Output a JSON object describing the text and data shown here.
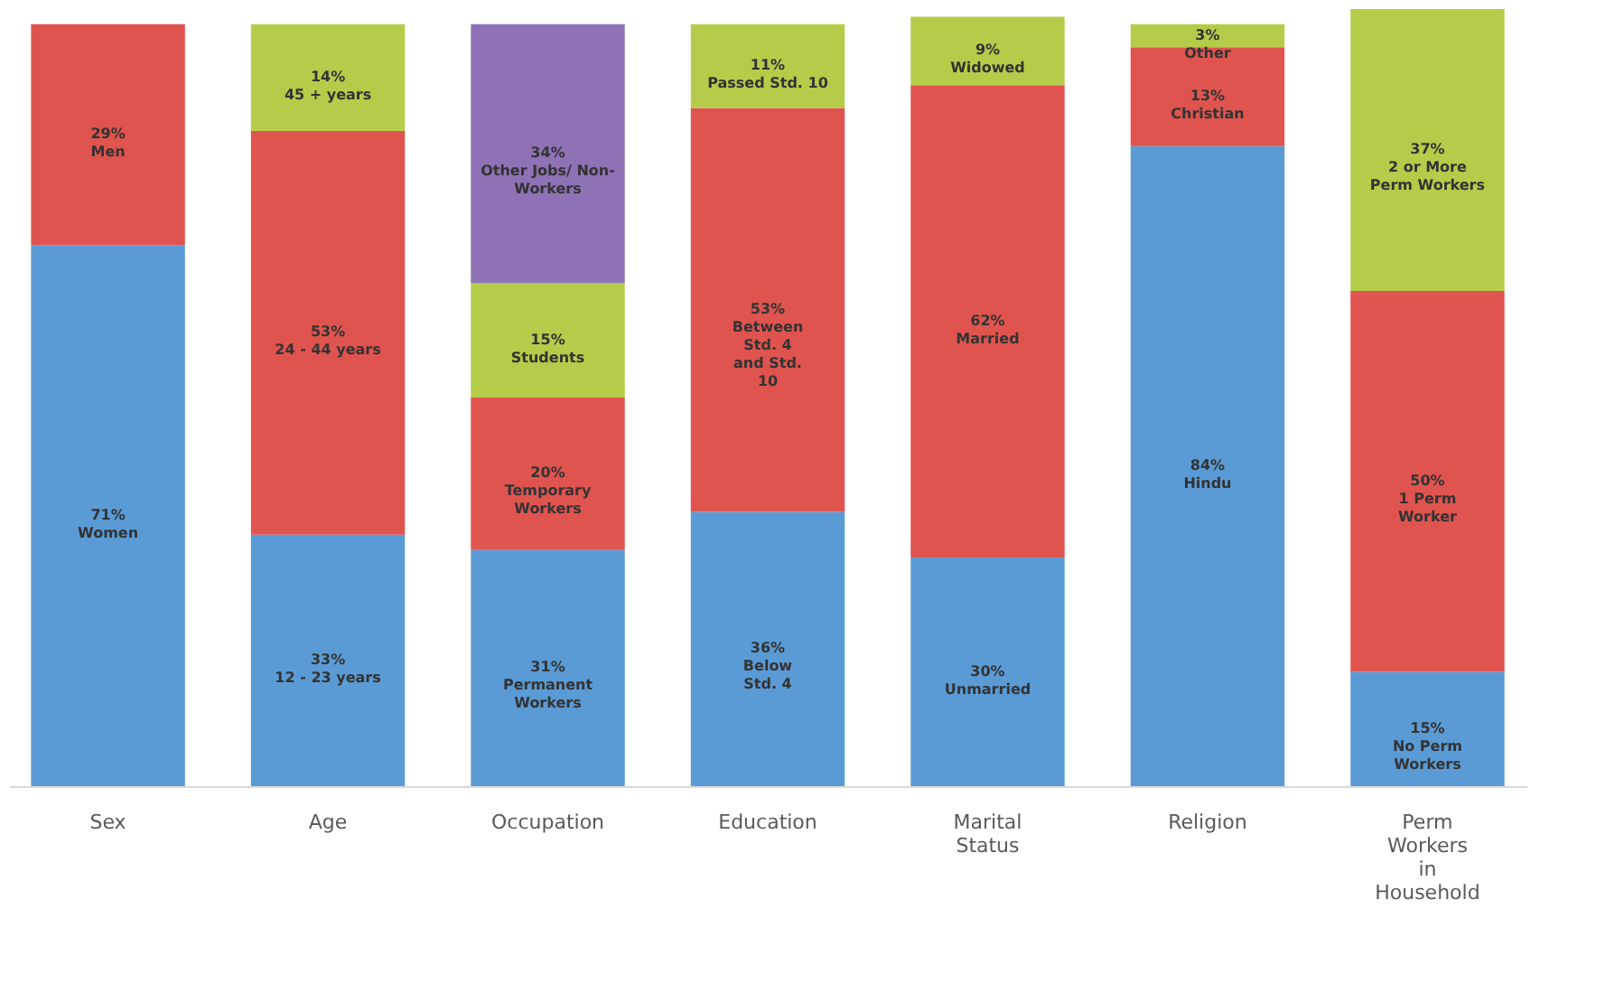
{
  "chart_data": {
    "type": "bar",
    "stacked": true,
    "categories": [
      "Sex",
      "Age",
      "Occupation",
      "Education",
      "Marital Status",
      "Religion",
      "Perm Workers in Household"
    ],
    "series": [
      {
        "color": "#5b9bd5",
        "values": [
          71,
          33,
          31,
          36,
          30,
          84,
          15
        ],
        "value_labels": [
          "71%\nWomen",
          "33%\n12 - 23 years",
          "31%\nPermanent\nWorkers",
          "36%\nBelow\nStd. 4",
          "30%\nUnmarried",
          "84%\nHindu",
          "15%\nNo Perm\nWorkers"
        ]
      },
      {
        "color": "#e0544f",
        "values": [
          29,
          53,
          20,
          53,
          62,
          13,
          50
        ],
        "value_labels": [
          "29%\nMen",
          "53%\n24 - 44 years",
          "20%\nTemporary\nWorkers",
          "53%\nBetween\nStd. 4\nand Std.\n10",
          "62%\nMarried",
          "13%\nChristian",
          "50%\n1 Perm\nWorker"
        ]
      },
      {
        "color": "#b5cc4a",
        "values": [
          null,
          14,
          15,
          11,
          9,
          3,
          37
        ],
        "value_labels": [
          null,
          "14%\n45 + years",
          "15%\nStudents",
          "11%\nPassed Std. 10",
          "9%\nWidowed",
          "3%\nOther",
          "37%\n2 or More\nPerm Workers"
        ]
      },
      {
        "color": "#8e72b5",
        "values": [
          null,
          null,
          34,
          null,
          null,
          null,
          null
        ],
        "value_labels": [
          null,
          null,
          "34%\nOther Jobs/ Non-\nWorkers",
          null,
          null,
          null,
          null
        ]
      }
    ],
    "grid": false,
    "tick_labels": "x"
  }
}
